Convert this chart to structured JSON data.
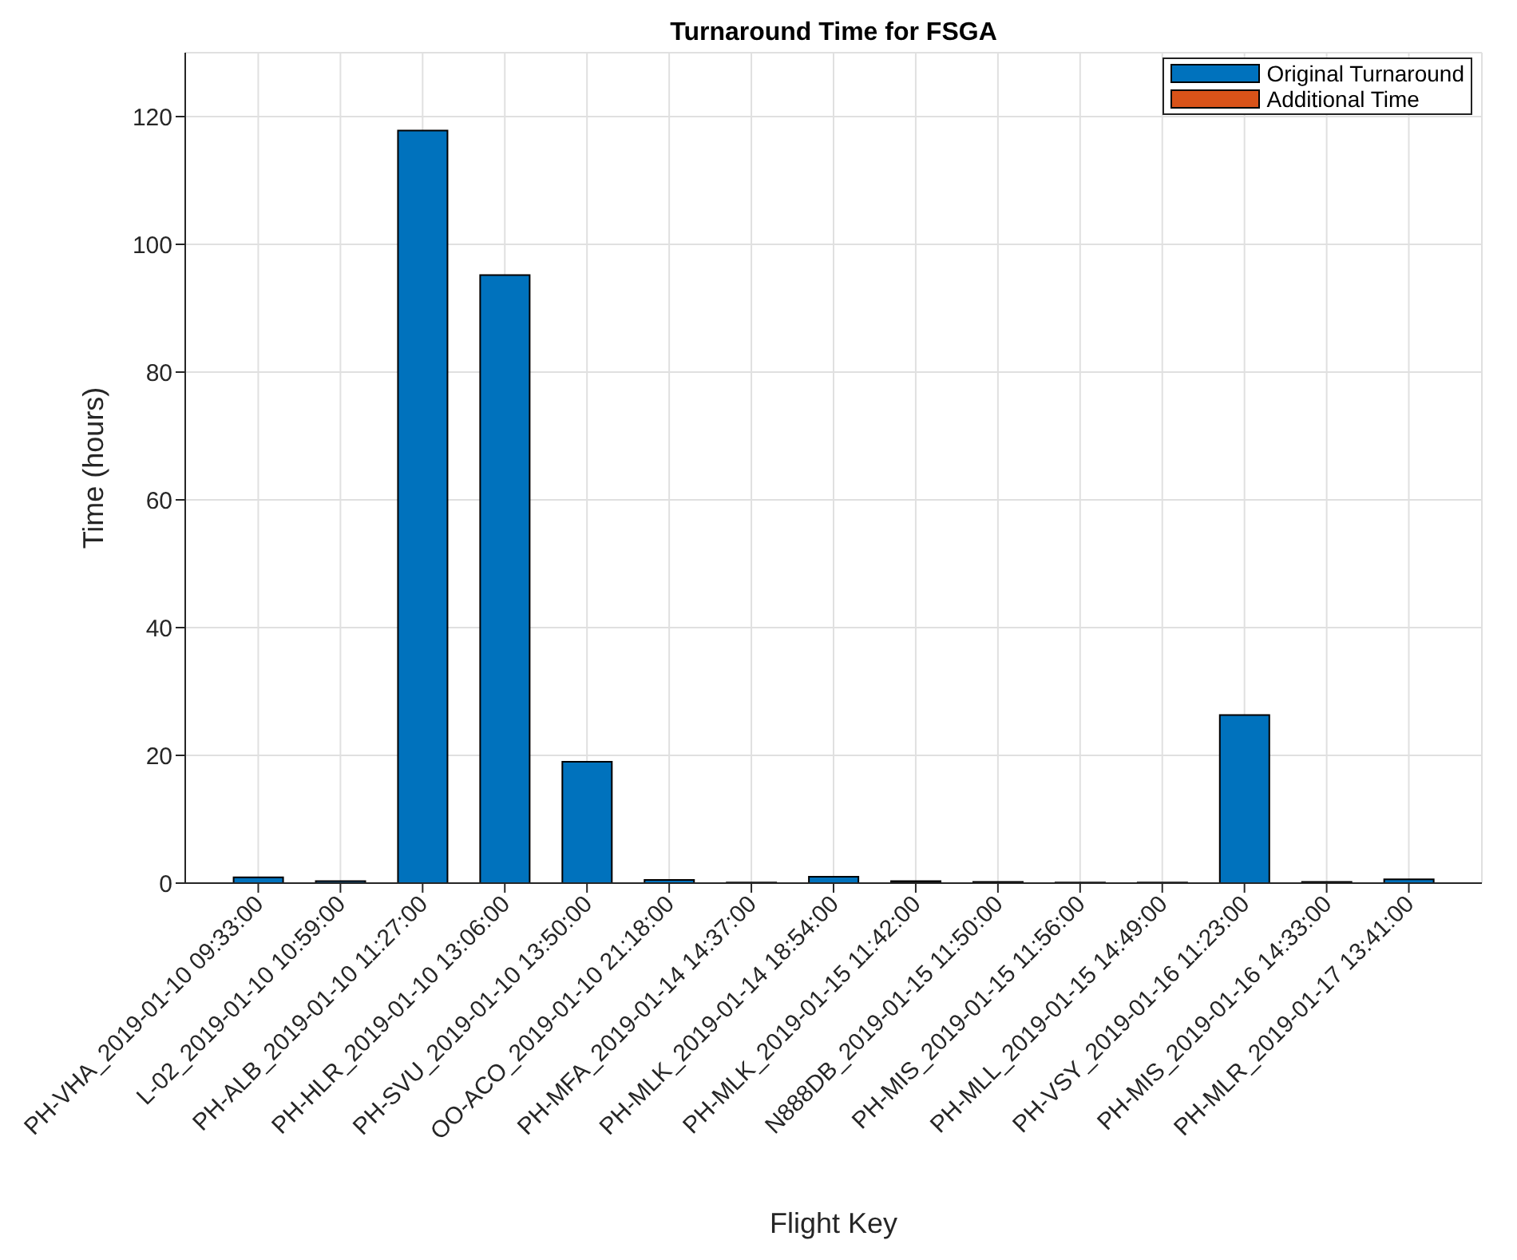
{
  "chart_data": {
    "type": "bar",
    "title": "Turnaround Time for FSGA",
    "xlabel": "Flight Key",
    "ylabel": "Time (hours)",
    "categories": [
      "PH-VHA_2019-01-10 09:33:00",
      "L-02_2019-01-10 10:59:00",
      "PH-ALB_2019-01-10 11:27:00",
      "PH-HLR_2019-01-10 13:06:00",
      "PH-SVU_2019-01-10 13:50:00",
      "OO-ACO_2019-01-10 21:18:00",
      "PH-MFA_2019-01-14 14:37:00",
      "PH-MLK_2019-01-14 18:54:00",
      "PH-MLK_2019-01-15 11:42:00",
      "N888DB_2019-01-15 11:50:00",
      "PH-MIS_2019-01-15 11:56:00",
      "PH-MLL_2019-01-15 14:49:00",
      "PH-VSY_2019-01-16 11:23:00",
      "PH-MIS_2019-01-16 14:33:00",
      "PH-MLR_2019-01-17 13:41:00"
    ],
    "series": [
      {
        "name": "Original Turnaround",
        "color": "#0072bd",
        "values": [
          0.9,
          0.3,
          117.8,
          95.2,
          19,
          0.5,
          0.1,
          1,
          0.1,
          0.2,
          0.1,
          0.1,
          26.3,
          0.2,
          0.6
        ]
      },
      {
        "name": "Additional Time",
        "color": "#d95319",
        "values": [
          0,
          0,
          0,
          0,
          0,
          0,
          0,
          0,
          0.2,
          0,
          0,
          0,
          0,
          0,
          0
        ]
      }
    ],
    "stacked": true,
    "ylim": [
      0,
      130
    ],
    "yticks": [
      0,
      20,
      40,
      60,
      80,
      100,
      120
    ],
    "grid": true,
    "legend": "top right"
  }
}
